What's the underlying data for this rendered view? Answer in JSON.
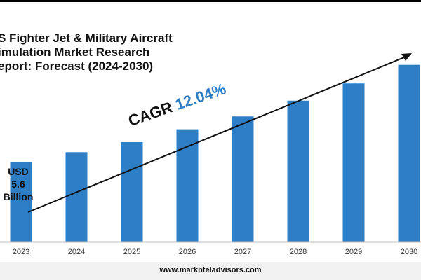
{
  "header": {
    "title_lines": [
      "S Fighter Jet & Military Aircraft",
      "imulation Market Research",
      "eport: Forecast (2024-2030)"
    ]
  },
  "annotations": {
    "start_value_lines": [
      "USD",
      "5.6",
      "Billion"
    ],
    "cagr_label": "CAGR",
    "cagr_value": "12.04%"
  },
  "footer": {
    "website": "www.marknteladvisors.com"
  },
  "colors": {
    "bar": "#2e7ec6",
    "arrow": "#111111",
    "cagr_value": "#2e7ec6"
  },
  "chart_data": {
    "type": "bar",
    "categories": [
      "2023",
      "2024",
      "2025",
      "2026",
      "2027",
      "2028",
      "2029",
      "2030"
    ],
    "values": [
      5.6,
      6.3,
      7.0,
      7.9,
      8.8,
      9.9,
      11.1,
      12.4
    ],
    "value_note": "",
    "grid": false,
    "legend": "none",
    "ylim": [
      0,
      14
    ]
  }
}
